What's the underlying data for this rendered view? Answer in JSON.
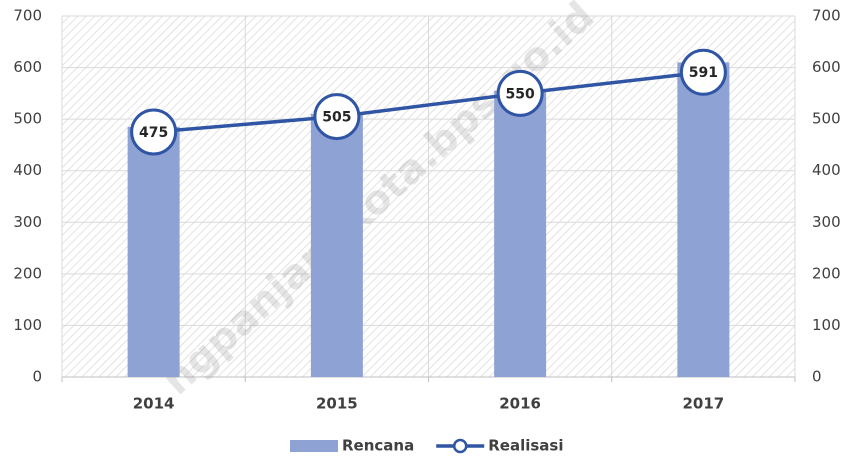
{
  "chart_data": {
    "type": "combo",
    "categories": [
      "2014",
      "2015",
      "2016",
      "2017"
    ],
    "series": [
      {
        "name": "Rencana",
        "type": "bar",
        "color": "#8fa2d4",
        "values": [
          485,
          510,
          555,
          610
        ]
      },
      {
        "name": "Realisasi",
        "type": "line",
        "axis": "y2",
        "color": "#2f55a4",
        "values": [
          475,
          505,
          550,
          591
        ]
      }
    ],
    "ylim": [
      0,
      700
    ],
    "yticks": [
      0,
      100,
      200,
      300,
      400,
      500,
      600,
      700
    ],
    "y2lim": [
      0,
      700
    ],
    "y2ticks": [
      0,
      100,
      200,
      300,
      400,
      500,
      600,
      700
    ],
    "grid": true,
    "legend": "bottom",
    "watermark": "ngpanjangkota.bps.go.id"
  }
}
